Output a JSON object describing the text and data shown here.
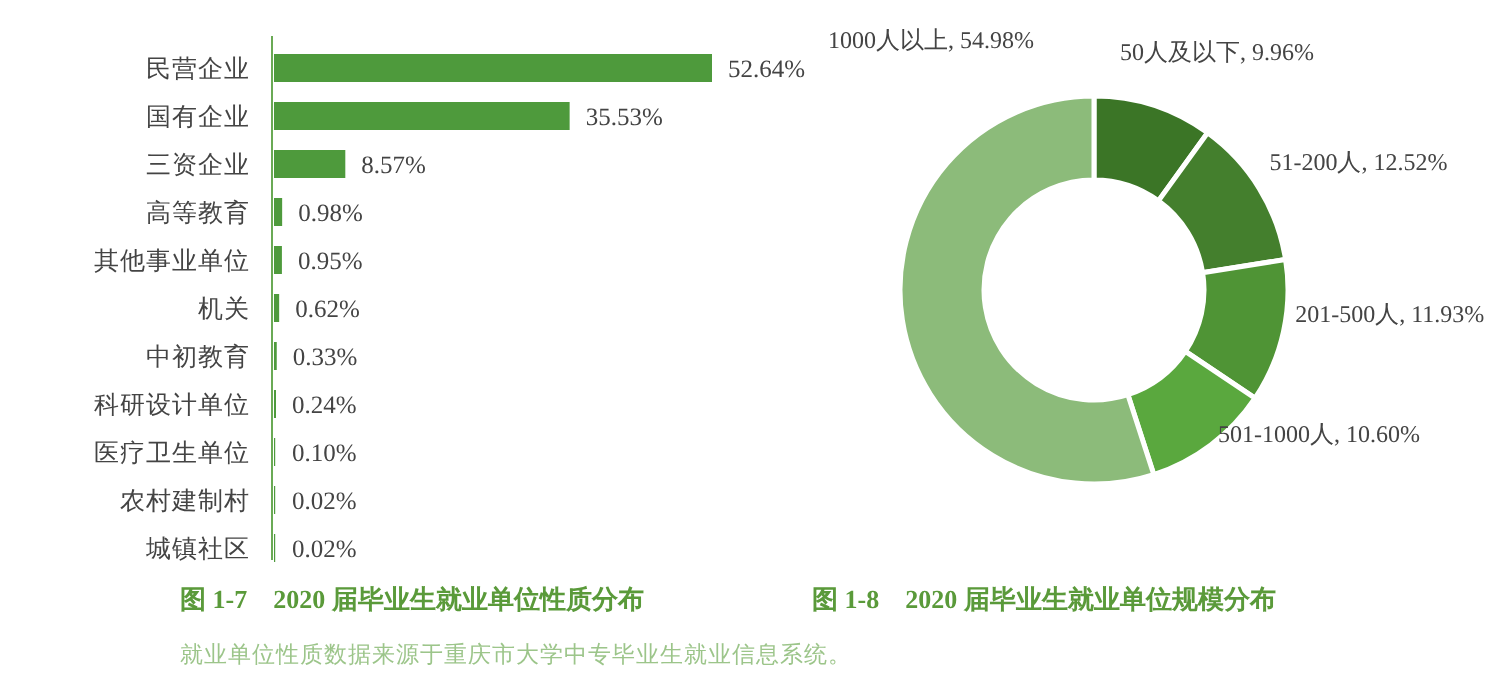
{
  "chart_data": [
    {
      "type": "bar",
      "orientation": "horizontal",
      "title": "图 1-7　2020 届毕业生就业单位性质分布",
      "categories": [
        "民营企业",
        "国有企业",
        "三资企业",
        "高等教育",
        "其他事业单位",
        "机关",
        "中初教育",
        "科研设计单位",
        "医疗卫生单位",
        "农村建制村",
        "城镇社区"
      ],
      "values": [
        52.64,
        35.53,
        8.57,
        0.98,
        0.95,
        0.62,
        0.33,
        0.24,
        0.1,
        0.02,
        0.02
      ],
      "value_labels": [
        "52.64%",
        "35.53%",
        "8.57%",
        "0.98%",
        "0.95%",
        "0.62%",
        "0.33%",
        "0.24%",
        "0.10%",
        "0.02%",
        "0.02%"
      ],
      "color": "#4e9a3c",
      "annotations": [
        "就业单位性质数据来源于重庆市大学中专毕业生就业信息系统。"
      ]
    },
    {
      "type": "donut",
      "title": "图 1-8　2020 届毕业生就业单位规模分布",
      "categories": [
        "50人及以下",
        "51-200人",
        "201-500人",
        "501-1000人",
        "1000人以上"
      ],
      "values": [
        9.96,
        12.52,
        11.93,
        10.6,
        54.98
      ],
      "value_labels": [
        "9.96%",
        "12.52%",
        "11.93%",
        "10.60%",
        "54.98%"
      ],
      "colors": [
        "#3b7526",
        "#447f2d",
        "#4f9435",
        "#5aa83e",
        "#8cbb7a"
      ]
    }
  ]
}
